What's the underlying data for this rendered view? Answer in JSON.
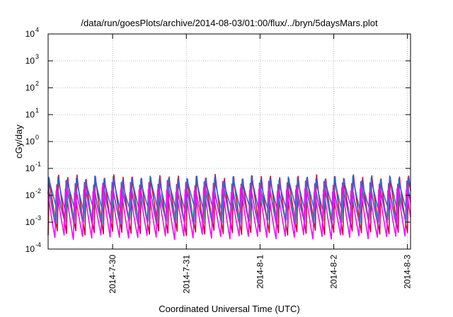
{
  "chart_data": {
    "type": "line",
    "title": "/data/run/goesPlots/archive/2014-08-03/01:00/flux/../bryn/5daysMars.plot",
    "xlabel": "Coordinated Universal Time (UTC)",
    "ylabel": "cGy/day",
    "y_scale": "log",
    "ylim": [
      0.0001,
      10000
    ],
    "xlim": [
      "2014-07-29 03:00",
      "2014-08-03 01:00"
    ],
    "grid": true,
    "y_ticks": [
      {
        "base": "10",
        "exp": "-4"
      },
      {
        "base": "10",
        "exp": "-3"
      },
      {
        "base": "10",
        "exp": "-2"
      },
      {
        "base": "10",
        "exp": "-1"
      },
      {
        "base": "10",
        "exp": "0"
      },
      {
        "base": "10",
        "exp": "1"
      },
      {
        "base": "10",
        "exp": "2"
      },
      {
        "base": "10",
        "exp": "3"
      },
      {
        "base": "10",
        "exp": "4"
      }
    ],
    "x_ticks": [
      "2014-7-30",
      "2014-7-31",
      "2014-8-1",
      "2014-8-2",
      "2014-8-3"
    ],
    "cycles_per_day": 8,
    "series": [
      {
        "color": "#c8102e",
        "peak": 0.055,
        "trough": 0.0004
      },
      {
        "color": "#2a6ad8",
        "peak": 0.045,
        "trough": 0.0025
      },
      {
        "color": "#00b8a8",
        "peak": 0.02,
        "trough": 0.001
      },
      {
        "color": "#8b3fc8",
        "peak": 0.035,
        "trough": 0.0008
      },
      {
        "color": "#ff00ff",
        "peak": 0.025,
        "trough": 0.00025
      }
    ],
    "colors": {
      "axis": "#000000",
      "grid": "#b8b8b8"
    }
  }
}
